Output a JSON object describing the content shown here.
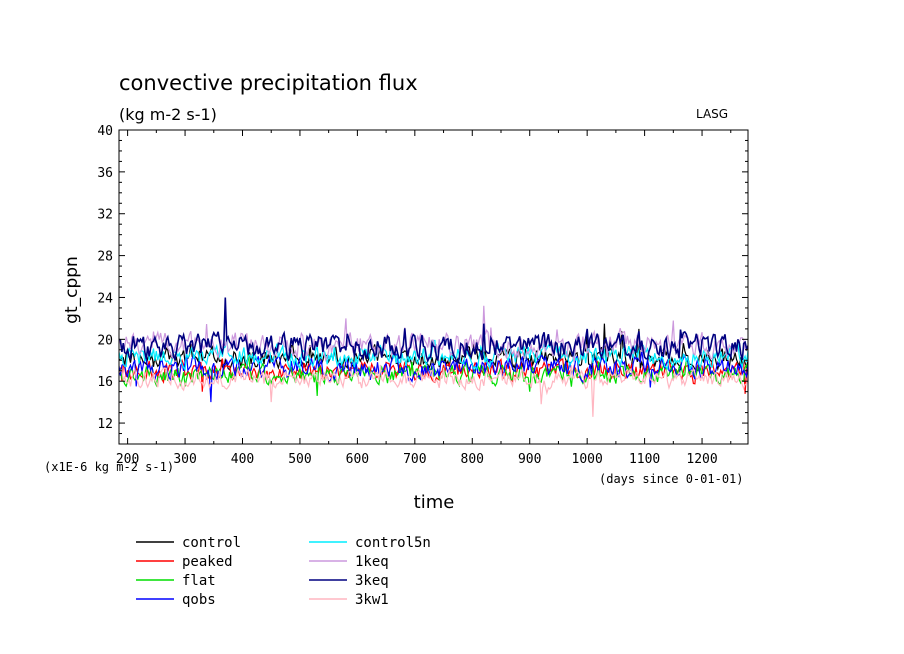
{
  "chart_data": {
    "type": "line",
    "title": "convective precipitation flux",
    "subtitle": "(kg m-2 s-1)",
    "source_label": "LASG",
    "xlabel": "time",
    "x_units": "(days since 0-01-01)",
    "ylabel": "gt_cppn",
    "y_units": "(x1E-6 kg m-2 s-1)",
    "xlim": [
      185,
      1280
    ],
    "ylim": [
      10,
      40
    ],
    "x_ticks": [
      200,
      300,
      400,
      500,
      600,
      700,
      800,
      900,
      1000,
      1100,
      1200
    ],
    "y_ticks": [
      12,
      16,
      20,
      24,
      28,
      32,
      36,
      40
    ],
    "grid": false,
    "legend_position": "bottom-left",
    "series": [
      {
        "name": "control",
        "color": "#000000",
        "mean": 18.2,
        "amp": 1.5,
        "key_x": [
          1000,
          1030,
          1060,
          1090
        ],
        "key_y": [
          20.5,
          21.5,
          20.8,
          21.0
        ]
      },
      {
        "name": "peaked",
        "color": "#ff0000",
        "mean": 17.0,
        "amp": 1.4,
        "key_x": [
          190,
          330,
          1275
        ],
        "key_y": [
          16.0,
          15.0,
          14.8
        ]
      },
      {
        "name": "flat",
        "color": "#00dd00",
        "mean": 16.6,
        "amp": 1.4,
        "key_x": [
          300,
          530,
          900
        ],
        "key_y": [
          15.5,
          14.6,
          15.0
        ]
      },
      {
        "name": "qobs",
        "color": "#0000ff",
        "mean": 17.2,
        "amp": 1.6,
        "key_x": [
          215,
          345,
          1110
        ],
        "key_y": [
          15.5,
          14.0,
          15.4
        ]
      },
      {
        "name": "control5n",
        "color": "#00eeff",
        "mean": 18.4,
        "amp": 1.5,
        "key_x": [
          560,
          760,
          1050
        ],
        "key_y": [
          19.5,
          18.0,
          19.0
        ]
      },
      {
        "name": "1keq",
        "color": "#cc99dd",
        "mean": 19.4,
        "amp": 1.8,
        "key_x": [
          580,
          820,
          1150
        ],
        "key_y": [
          22.0,
          23.2,
          21.8
        ]
      },
      {
        "name": "3keq",
        "color": "#000080",
        "mean": 19.3,
        "amp": 1.8,
        "key_x": [
          370,
          820,
          1000
        ],
        "key_y": [
          24.0,
          21.5,
          21.0
        ]
      },
      {
        "name": "3kw1",
        "color": "#ffb6c1",
        "mean": 16.2,
        "amp": 1.3,
        "key_x": [
          450,
          920,
          1010
        ],
        "key_y": [
          14.0,
          13.8,
          12.6
        ]
      }
    ]
  }
}
